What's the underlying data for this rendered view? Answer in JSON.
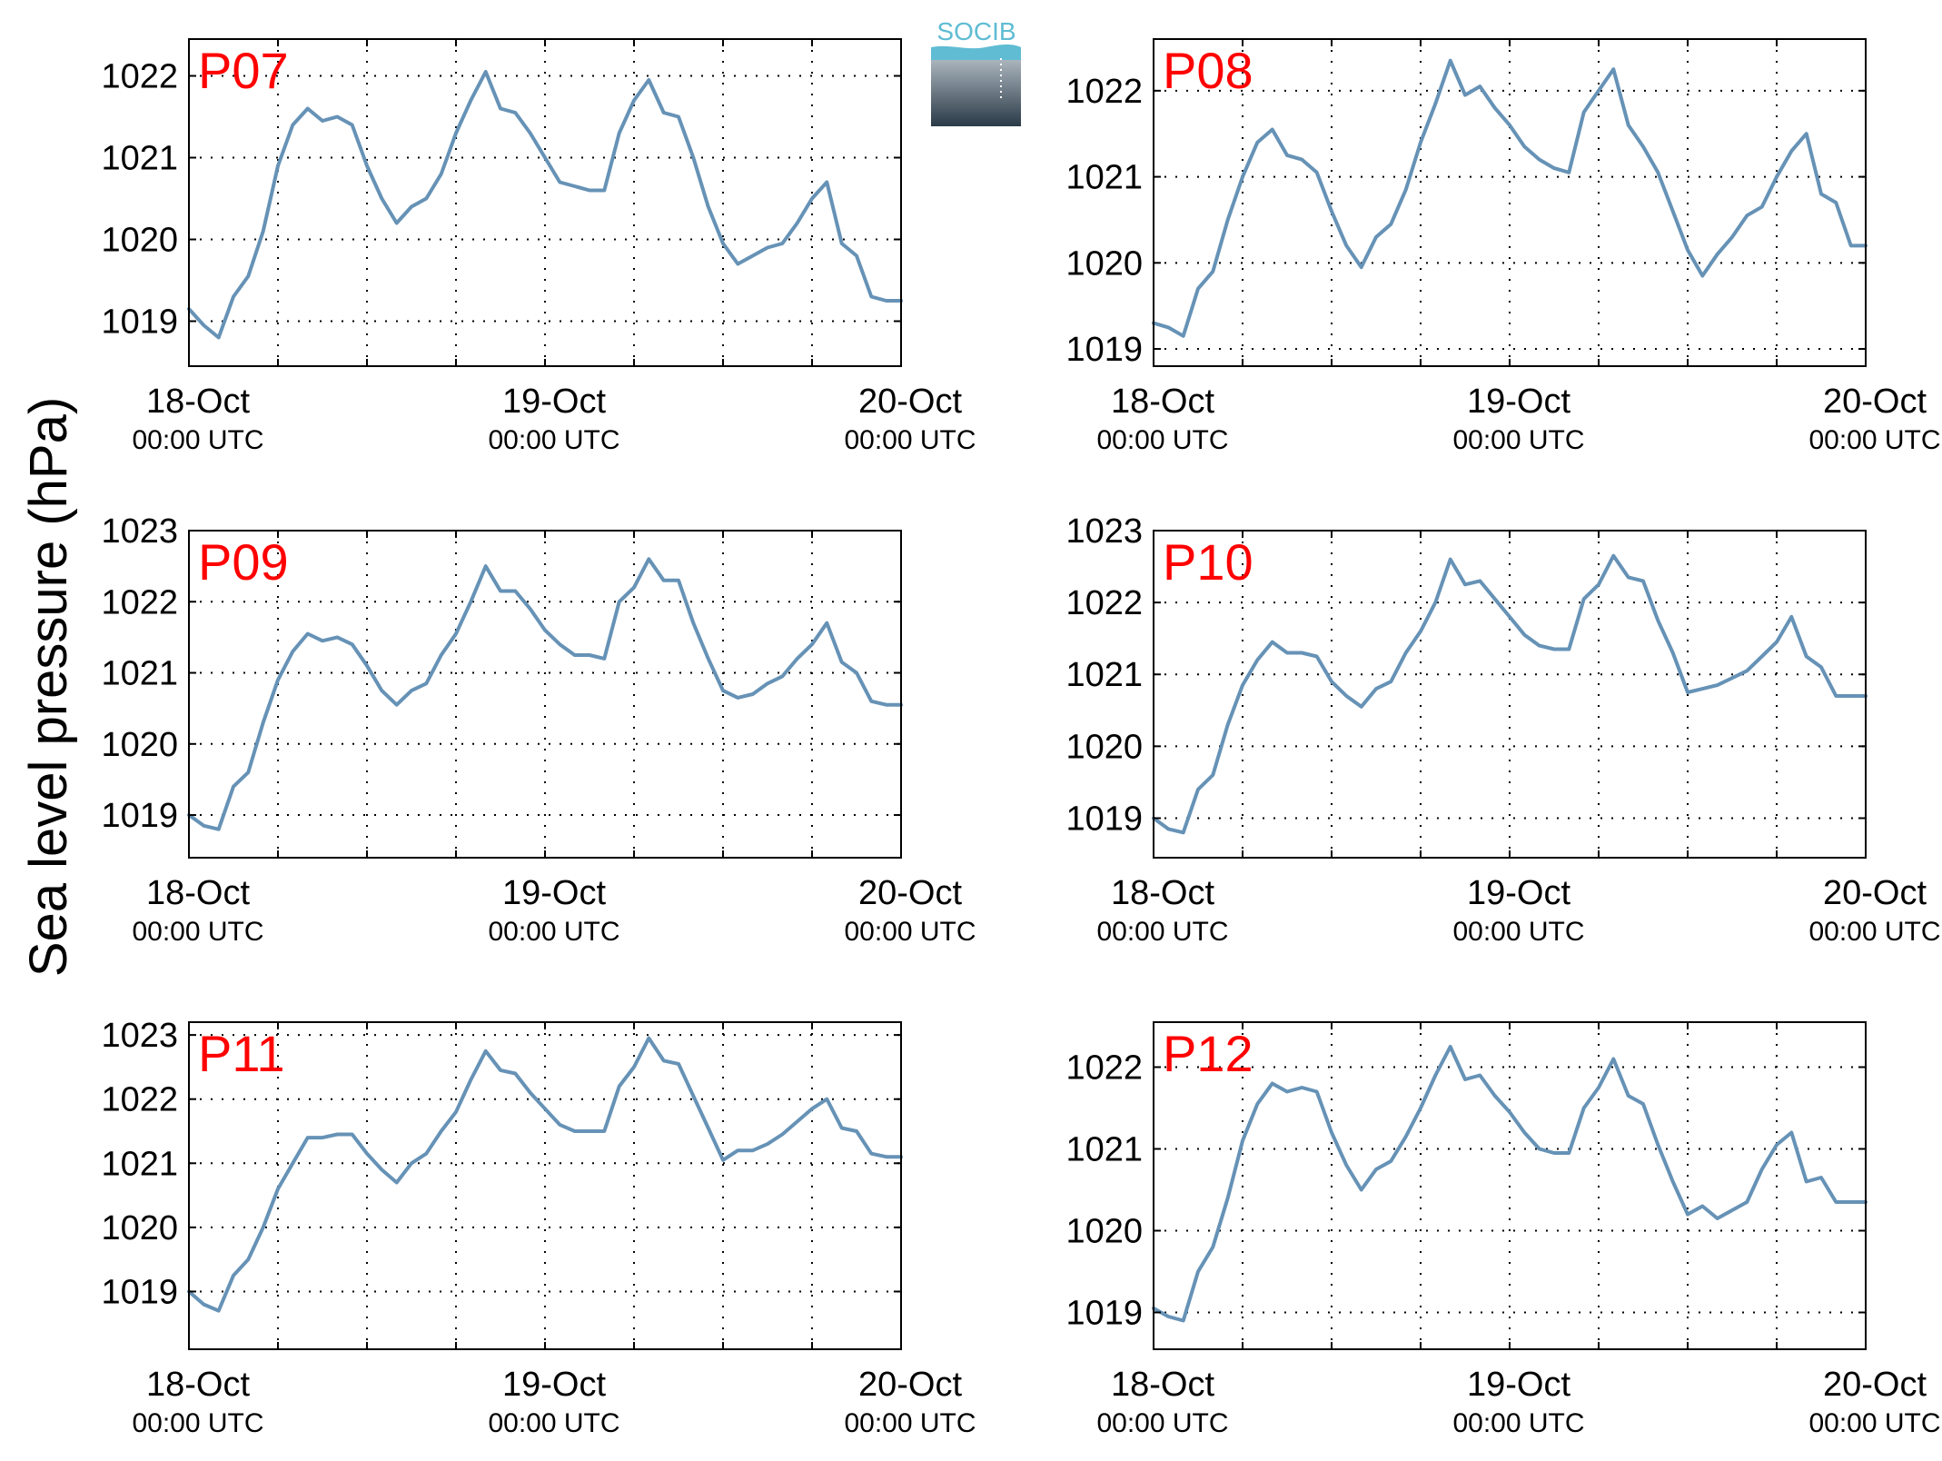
{
  "figure": {
    "ylabel": "Sea level pressure (hPa)",
    "logo_text": "SOCIB",
    "line_color": "#6692b6",
    "label_color": "#ff0000",
    "x_tick_labels": [
      {
        "date": "18-Oct",
        "time": "00:00 UTC"
      },
      {
        "date": "19-Oct",
        "time": "00:00 UTC"
      },
      {
        "date": "20-Oct",
        "time": "00:00 UTC"
      }
    ]
  },
  "chart_data": [
    {
      "type": "line",
      "title": "P07",
      "xlim": [
        "18-Oct 00:00",
        "20-Oct 00:00"
      ],
      "ylim": [
        1018.45,
        1022.45
      ],
      "yticks": [
        1019,
        1020,
        1021,
        1022
      ],
      "grid": true,
      "series": [
        {
          "x_hours": [
            0,
            1,
            2,
            3,
            4,
            5,
            6,
            7,
            8,
            9,
            10,
            11,
            12,
            13,
            14,
            15,
            16,
            17,
            18,
            19,
            20,
            21,
            22,
            23,
            24,
            25,
            26,
            27,
            28,
            29,
            30,
            31,
            32,
            33,
            34,
            35,
            36,
            37,
            38,
            39,
            40,
            41,
            42,
            43,
            44,
            45,
            46,
            47,
            48
          ],
          "values": [
            1019.15,
            1018.95,
            1018.8,
            1019.3,
            1019.55,
            1020.1,
            1020.9,
            1021.4,
            1021.6,
            1021.45,
            1021.5,
            1021.4,
            1020.9,
            1020.5,
            1020.2,
            1020.4,
            1020.5,
            1020.8,
            1021.3,
            1021.7,
            1022.05,
            1021.6,
            1021.55,
            1021.3,
            1021.0,
            1020.7,
            1020.65,
            1020.6,
            1020.6,
            1021.3,
            1021.7,
            1021.95,
            1021.55,
            1021.5,
            1021.0,
            1020.4,
            1019.95,
            1019.7,
            1019.8,
            1019.9,
            1019.95,
            1020.2,
            1020.5,
            1020.7,
            1019.95,
            1019.8,
            1019.3,
            1019.25,
            1019.25
          ]
        }
      ]
    },
    {
      "type": "line",
      "title": "P08",
      "xlim": [
        "18-Oct 00:00",
        "20-Oct 00:00"
      ],
      "ylim": [
        1018.8,
        1022.6
      ],
      "yticks": [
        1019,
        1020,
        1021,
        1022
      ],
      "grid": true,
      "series": [
        {
          "x_hours": [
            0,
            1,
            2,
            3,
            4,
            5,
            6,
            7,
            8,
            9,
            10,
            11,
            12,
            13,
            14,
            15,
            16,
            17,
            18,
            19,
            20,
            21,
            22,
            23,
            24,
            25,
            26,
            27,
            28,
            29,
            30,
            31,
            32,
            33,
            34,
            35,
            36,
            37,
            38,
            39,
            40,
            41,
            42,
            43,
            44,
            45,
            46,
            47,
            48
          ],
          "values": [
            1019.3,
            1019.25,
            1019.15,
            1019.7,
            1019.9,
            1020.5,
            1021.0,
            1021.4,
            1021.55,
            1021.25,
            1021.2,
            1021.05,
            1020.6,
            1020.2,
            1019.95,
            1020.3,
            1020.45,
            1020.85,
            1021.4,
            1021.85,
            1022.35,
            1021.95,
            1022.05,
            1021.8,
            1021.6,
            1021.35,
            1021.2,
            1021.1,
            1021.05,
            1021.75,
            1022.0,
            1022.25,
            1021.6,
            1021.35,
            1021.05,
            1020.6,
            1020.15,
            1019.85,
            1020.1,
            1020.3,
            1020.55,
            1020.65,
            1021.0,
            1021.3,
            1021.5,
            1020.8,
            1020.7,
            1020.2,
            1020.2
          ]
        }
      ]
    },
    {
      "type": "line",
      "title": "P09",
      "xlim": [
        "18-Oct 00:00",
        "20-Oct 00:00"
      ],
      "ylim": [
        1018.4,
        1023.0
      ],
      "yticks": [
        1019,
        1020,
        1021,
        1022,
        1023
      ],
      "grid": true,
      "series": [
        {
          "x_hours": [
            0,
            1,
            2,
            3,
            4,
            5,
            6,
            7,
            8,
            9,
            10,
            11,
            12,
            13,
            14,
            15,
            16,
            17,
            18,
            19,
            20,
            21,
            22,
            23,
            24,
            25,
            26,
            27,
            28,
            29,
            30,
            31,
            32,
            33,
            34,
            35,
            36,
            37,
            38,
            39,
            40,
            41,
            42,
            43,
            44,
            45,
            46,
            47,
            48
          ],
          "values": [
            1019.0,
            1018.85,
            1018.8,
            1019.4,
            1019.6,
            1020.3,
            1020.9,
            1021.3,
            1021.55,
            1021.45,
            1021.5,
            1021.4,
            1021.1,
            1020.75,
            1020.55,
            1020.75,
            1020.85,
            1021.25,
            1021.55,
            1022.0,
            1022.5,
            1022.15,
            1022.15,
            1021.9,
            1021.6,
            1021.4,
            1021.25,
            1021.25,
            1021.2,
            1022.0,
            1022.2,
            1022.6,
            1022.3,
            1022.3,
            1021.7,
            1021.2,
            1020.75,
            1020.65,
            1020.7,
            1020.85,
            1020.95,
            1021.2,
            1021.4,
            1021.7,
            1021.15,
            1021.0,
            1020.6,
            1020.55,
            1020.55
          ]
        }
      ]
    },
    {
      "type": "line",
      "title": "P10",
      "xlim": [
        "18-Oct 00:00",
        "20-Oct 00:00"
      ],
      "ylim": [
        1018.45,
        1023.0
      ],
      "yticks": [
        1019,
        1020,
        1021,
        1022,
        1023
      ],
      "grid": true,
      "series": [
        {
          "x_hours": [
            0,
            1,
            2,
            3,
            4,
            5,
            6,
            7,
            8,
            9,
            10,
            11,
            12,
            13,
            14,
            15,
            16,
            17,
            18,
            19,
            20,
            21,
            22,
            23,
            24,
            25,
            26,
            27,
            28,
            29,
            30,
            31,
            32,
            33,
            34,
            35,
            36,
            37,
            38,
            39,
            40,
            41,
            42,
            43,
            44,
            45,
            46,
            47,
            48
          ],
          "values": [
            1019.0,
            1018.85,
            1018.8,
            1019.4,
            1019.6,
            1020.3,
            1020.85,
            1021.2,
            1021.45,
            1021.3,
            1021.3,
            1021.25,
            1020.9,
            1020.7,
            1020.55,
            1020.8,
            1020.9,
            1021.3,
            1021.6,
            1022.0,
            1022.6,
            1022.25,
            1022.3,
            1022.05,
            1021.8,
            1021.55,
            1021.4,
            1021.35,
            1021.35,
            1022.05,
            1022.25,
            1022.65,
            1022.35,
            1022.3,
            1021.75,
            1021.3,
            1020.75,
            1020.8,
            1020.85,
            1020.95,
            1021.05,
            1021.25,
            1021.45,
            1021.8,
            1021.25,
            1021.1,
            1020.7,
            1020.7,
            1020.7
          ]
        }
      ]
    },
    {
      "type": "line",
      "title": "P11",
      "xlim": [
        "18-Oct 00:00",
        "20-Oct 00:00"
      ],
      "ylim": [
        1018.1,
        1023.2
      ],
      "yticks": [
        1019,
        1020,
        1021,
        1022,
        1023
      ],
      "grid": true,
      "series": [
        {
          "x_hours": [
            0,
            1,
            2,
            3,
            4,
            5,
            6,
            7,
            8,
            9,
            10,
            11,
            12,
            13,
            14,
            15,
            16,
            17,
            18,
            19,
            20,
            21,
            22,
            23,
            24,
            25,
            26,
            27,
            28,
            29,
            30,
            31,
            32,
            33,
            34,
            35,
            36,
            37,
            38,
            39,
            40,
            41,
            42,
            43,
            44,
            45,
            46,
            47,
            48
          ],
          "values": [
            1019.0,
            1018.8,
            1018.7,
            1019.25,
            1019.5,
            1020.0,
            1020.6,
            1021.0,
            1021.4,
            1021.4,
            1021.45,
            1021.45,
            1021.15,
            1020.9,
            1020.7,
            1021.0,
            1021.15,
            1021.5,
            1021.8,
            1022.3,
            1022.75,
            1022.45,
            1022.4,
            1022.1,
            1021.85,
            1021.6,
            1021.5,
            1021.5,
            1021.5,
            1022.2,
            1022.5,
            1022.95,
            1022.6,
            1022.55,
            1022.05,
            1021.55,
            1021.05,
            1021.2,
            1021.2,
            1021.3,
            1021.45,
            1021.65,
            1021.85,
            1022.0,
            1021.55,
            1021.5,
            1021.15,
            1021.1,
            1021.1
          ]
        }
      ]
    },
    {
      "type": "line",
      "title": "P12",
      "xlim": [
        "18-Oct 00:00",
        "20-Oct 00:00"
      ],
      "ylim": [
        1018.55,
        1022.55
      ],
      "yticks": [
        1019,
        1020,
        1021,
        1022
      ],
      "grid": true,
      "series": [
        {
          "x_hours": [
            0,
            1,
            2,
            3,
            4,
            5,
            6,
            7,
            8,
            9,
            10,
            11,
            12,
            13,
            14,
            15,
            16,
            17,
            18,
            19,
            20,
            21,
            22,
            23,
            24,
            25,
            26,
            27,
            28,
            29,
            30,
            31,
            32,
            33,
            34,
            35,
            36,
            37,
            38,
            39,
            40,
            41,
            42,
            43,
            44,
            45,
            46,
            47,
            48
          ],
          "values": [
            1019.05,
            1018.95,
            1018.9,
            1019.5,
            1019.8,
            1020.4,
            1021.1,
            1021.55,
            1021.8,
            1021.7,
            1021.75,
            1021.7,
            1021.2,
            1020.8,
            1020.5,
            1020.75,
            1020.85,
            1021.15,
            1021.5,
            1021.9,
            1022.25,
            1021.85,
            1021.9,
            1021.65,
            1021.45,
            1021.2,
            1021.0,
            1020.95,
            1020.95,
            1021.5,
            1021.75,
            1022.1,
            1021.65,
            1021.55,
            1021.05,
            1020.6,
            1020.2,
            1020.3,
            1020.15,
            1020.25,
            1020.35,
            1020.75,
            1021.05,
            1021.2,
            1020.6,
            1020.65,
            1020.35,
            1020.35,
            1020.35
          ]
        }
      ]
    }
  ]
}
